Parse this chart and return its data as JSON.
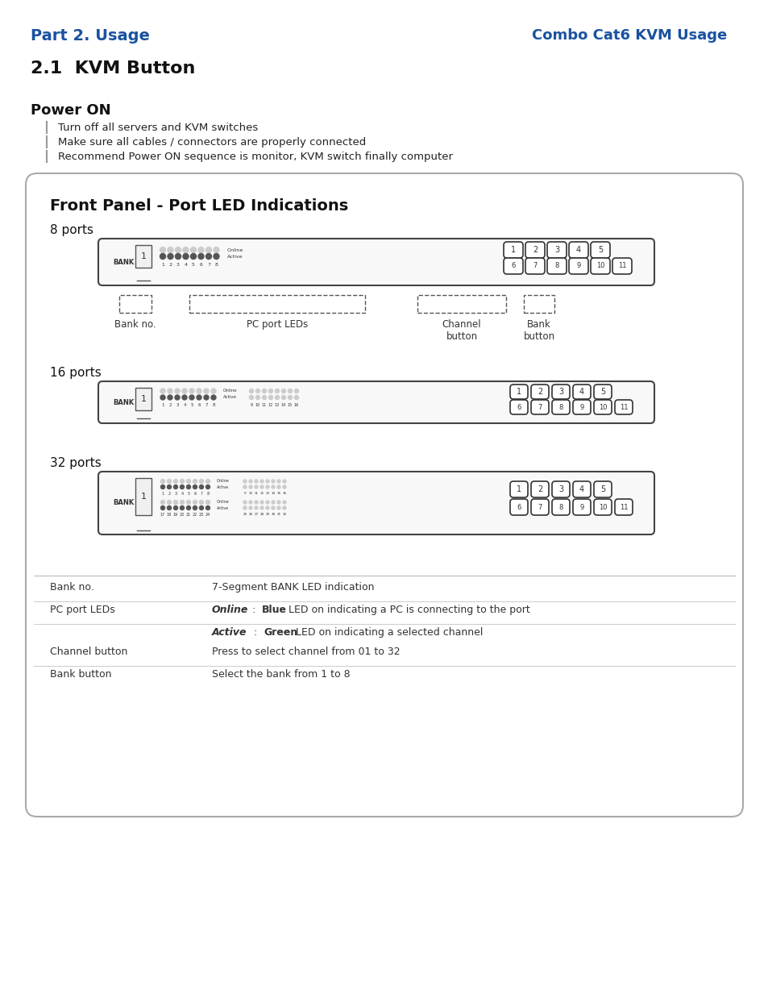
{
  "title_left": "Part 2. Usage",
  "title_right": "Combo Cat6 KVM Usage",
  "title_color": "#1a52a0",
  "heading_21": "2.1  KVM Button",
  "power_on_title": "Power ON",
  "power_on_bullets": [
    "Turn off all servers and KVM switches",
    "Make sure all cables / connectors are properly connected",
    "Recommend Power ON sequence is monitor, KVM switch finally computer"
  ],
  "box_title": "Front Panel - Port LED Indications",
  "section_8": "8 ports",
  "section_16": "16 ports",
  "section_32": "32 ports",
  "label_bank_no": "Bank no.",
  "label_pc_port": "PC port LEDs",
  "label_channel": "Channel\nbutton",
  "label_bank_btn": "Bank\nbutton",
  "table_rows": [
    [
      "Bank no.",
      "7-Segment BANK LED indication",
      "none"
    ],
    [
      "PC port LEDs",
      "Online : Blue LED on indicating a PC is connecting to the port",
      "online"
    ],
    [
      "",
      "Active : Green LED on indicating a selected channel",
      "active"
    ],
    [
      "Channel button",
      "Press to select channel from 01 to 32",
      "none"
    ],
    [
      "Bank button",
      "Select the bank from 1 to 8",
      "none"
    ]
  ],
  "bg_color": "#ffffff",
  "text_color": "#222222",
  "box_border": "#888888"
}
